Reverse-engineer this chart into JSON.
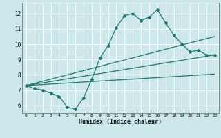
{
  "xlabel": "Humidex (Indice chaleur)",
  "xlim": [
    -0.5,
    23.5
  ],
  "ylim": [
    5.5,
    12.7
  ],
  "yticks": [
    6,
    7,
    8,
    9,
    10,
    11,
    12
  ],
  "xticks": [
    0,
    1,
    2,
    3,
    4,
    5,
    6,
    7,
    8,
    9,
    10,
    11,
    12,
    13,
    14,
    15,
    16,
    17,
    18,
    19,
    20,
    21,
    22,
    23
  ],
  "bg_color": "#cce8ea",
  "line_color": "#1a7a6e",
  "grid_color": "#ffffff",
  "main_line_x": [
    0,
    1,
    2,
    3,
    4,
    5,
    6,
    7,
    8,
    9,
    10,
    11,
    12,
    13,
    14,
    15,
    16,
    17,
    18,
    19,
    20,
    21,
    22,
    23
  ],
  "main_line_y": [
    7.3,
    7.1,
    7.0,
    6.8,
    6.6,
    5.9,
    5.75,
    6.5,
    7.7,
    9.1,
    9.9,
    11.1,
    11.85,
    12.0,
    11.55,
    11.75,
    12.25,
    11.4,
    10.6,
    10.0,
    9.5,
    9.6,
    9.3,
    9.3
  ],
  "upper_line_x": [
    0,
    23
  ],
  "upper_line_y": [
    7.3,
    10.5
  ],
  "middle_line_x": [
    0,
    23
  ],
  "middle_line_y": [
    7.3,
    9.3
  ],
  "lower_line_x": [
    0,
    23
  ],
  "lower_line_y": [
    7.3,
    8.05
  ]
}
